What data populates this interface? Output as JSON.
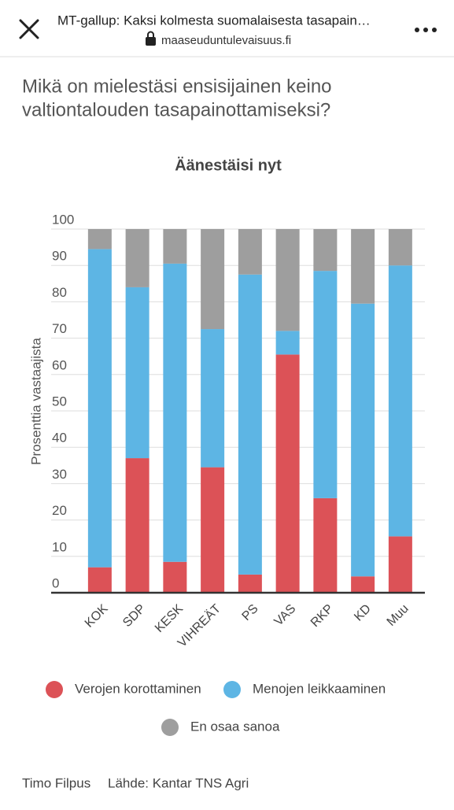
{
  "browser": {
    "page_title": "MT-gallup: Kaksi kolmesta suomalaisesta tasapain…",
    "url": "maaseuduntulevaisuus.fi"
  },
  "question": [
    "Mikä on mielestäsi ensisijainen keino",
    "valtiontalouden tasapainottamiseksi?"
  ],
  "chart_data": {
    "type": "stacked_bar",
    "title": "Äänestäisi nyt",
    "y_label": "Prosenttia vastaajista",
    "categories": [
      "KOK",
      "SDP",
      "KESK",
      "VIHREÄT",
      "PS",
      "VAS",
      "RKP",
      "KD",
      "Muu"
    ],
    "series": [
      {
        "name": "Verojen korottaminen",
        "color": "#dc5257",
        "values": [
          7,
          37,
          8.5,
          34.5,
          5,
          65.5,
          26,
          4.5,
          15.5
        ]
      },
      {
        "name": "Menojen leikkaaminen",
        "color": "#5db5e4",
        "values": [
          87.5,
          47,
          82,
          38,
          82.5,
          6.5,
          62.5,
          75,
          74.5
        ]
      },
      {
        "name": "En osaa sanoa",
        "color": "#9e9e9e",
        "values": [
          5.5,
          16,
          9.5,
          27.5,
          12.5,
          28,
          11.5,
          20.5,
          10
        ]
      }
    ],
    "ylim": [
      0,
      100
    ],
    "yticks": [
      0,
      10,
      20,
      30,
      40,
      50,
      60,
      70,
      80,
      90,
      100
    ],
    "grid": true
  },
  "footer": {
    "author": "Timo Filpus",
    "source": "Lähde: Kantar TNS Agri"
  }
}
